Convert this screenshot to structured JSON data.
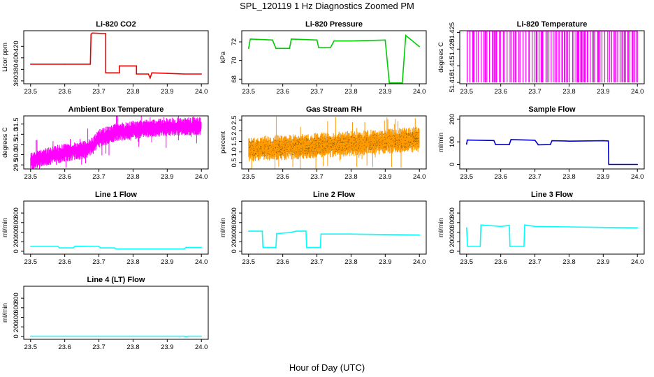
{
  "title": "SPL_120119  1 Hz Diagnostics Zoomed PM",
  "xlabel": "Hour of Day (UTC)",
  "chart_data": [
    {
      "type": "line",
      "title": "Li-820 CO2",
      "ylabel": "Licor ppm",
      "xlim": [
        23.48,
        24.02
      ],
      "ylim": [
        355,
        447
      ],
      "xticks": [
        "23.5",
        "23.6",
        "23.7",
        "23.8",
        "23.9",
        "24.0"
      ],
      "yticks": [
        {
          "v": 360,
          "t": "360"
        },
        {
          "v": 380,
          "t": "380"
        },
        {
          "v": 400,
          "t": "400"
        },
        {
          "v": 420,
          "t": "420"
        }
      ],
      "color": "#ee0000",
      "style": "line",
      "series": [
        [
          23.5,
          389
        ],
        [
          23.6,
          389
        ],
        [
          23.675,
          389
        ],
        [
          23.677,
          441
        ],
        [
          23.681,
          443
        ],
        [
          23.72,
          442
        ],
        [
          23.72,
          374
        ],
        [
          23.76,
          374
        ],
        [
          23.76,
          386
        ],
        [
          23.81,
          386
        ],
        [
          23.81,
          372
        ],
        [
          23.845,
          372
        ],
        [
          23.85,
          365
        ],
        [
          23.855,
          374
        ],
        [
          23.9,
          373
        ],
        [
          23.95,
          372
        ],
        [
          24.0,
          372
        ]
      ]
    },
    {
      "type": "line",
      "title": "Li-820 Pressure",
      "ylabel": "kPa",
      "xlim": [
        23.48,
        24.02
      ],
      "ylim": [
        67.5,
        73.2
      ],
      "xticks": [
        "23.5",
        "23.6",
        "23.7",
        "23.8",
        "23.9",
        "24.0"
      ],
      "yticks": [
        {
          "v": 68,
          "t": "68"
        },
        {
          "v": 70,
          "t": "70"
        },
        {
          "v": 72,
          "t": "72"
        }
      ],
      "color": "#00cc00",
      "style": "line",
      "series": [
        [
          23.5,
          71.3
        ],
        [
          23.505,
          72.3
        ],
        [
          23.57,
          72.2
        ],
        [
          23.58,
          71.3
        ],
        [
          23.62,
          71.3
        ],
        [
          23.625,
          72.3
        ],
        [
          23.7,
          72.2
        ],
        [
          23.705,
          71.4
        ],
        [
          23.74,
          71.4
        ],
        [
          23.75,
          72.1
        ],
        [
          23.8,
          72.1
        ],
        [
          23.9,
          72.2
        ],
        [
          23.912,
          67.6
        ],
        [
          23.95,
          67.6
        ],
        [
          23.96,
          72.7
        ],
        [
          24.0,
          71.5
        ]
      ]
    },
    {
      "type": "line",
      "title": "Li-820 Temperature",
      "ylabel": "degrees C",
      "xlim": [
        23.48,
        24.02
      ],
      "ylim": [
        51.4096,
        51.4255
      ],
      "xticks": [
        "23.5",
        "23.6",
        "23.7",
        "23.8",
        "23.9",
        "24.0"
      ],
      "yticks": [
        {
          "v": 51.41,
          "t": "51.410"
        },
        {
          "v": 51.415,
          "t": "51.415"
        },
        {
          "v": 51.42,
          "t": "51.420"
        },
        {
          "v": 51.425,
          "t": "51.425"
        }
      ],
      "color": "#ff00ff",
      "style": "spikes",
      "low": 51.41,
      "high": 51.4254
    },
    {
      "type": "line",
      "title": "Ambient Box Temperature",
      "ylabel": "degrees C",
      "xlim": [
        23.48,
        24.02
      ],
      "ylim": [
        29.3,
        31.9
      ],
      "xticks": [
        "23.5",
        "23.6",
        "23.7",
        "23.8",
        "23.9",
        "24.0"
      ],
      "yticks": [
        {
          "v": 29.5,
          "t": "29.5"
        },
        {
          "v": 30.0,
          "t": "30.0"
        },
        {
          "v": 30.5,
          "t": "30.5"
        },
        {
          "v": 31.0,
          "t": "31.0"
        },
        {
          "v": 31.5,
          "t": "31.5"
        }
      ],
      "color": "#ff00ff",
      "style": "band",
      "bandwidth": 0.45,
      "series": [
        [
          23.5,
          29.7
        ],
        [
          23.55,
          29.9
        ],
        [
          23.6,
          30.1
        ],
        [
          23.65,
          30.2
        ],
        [
          23.68,
          30.4
        ],
        [
          23.7,
          30.8
        ],
        [
          23.75,
          31.1
        ],
        [
          23.8,
          31.2
        ],
        [
          23.85,
          31.3
        ],
        [
          23.9,
          31.35
        ],
        [
          24.0,
          31.4
        ]
      ]
    },
    {
      "type": "line",
      "title": "Gas Stream RH",
      "ylabel": "percent",
      "xlim": [
        23.48,
        24.02
      ],
      "ylim": [
        0.2,
        2.7
      ],
      "xticks": [
        "23.5",
        "23.6",
        "23.7",
        "23.8",
        "23.9",
        "24.0"
      ],
      "yticks": [
        {
          "v": 0.5,
          "t": "0.5"
        },
        {
          "v": 1.0,
          "t": "1.0"
        },
        {
          "v": 1.5,
          "t": "1.5"
        },
        {
          "v": 2.0,
          "t": "2.0"
        },
        {
          "v": 2.5,
          "t": "2.5"
        }
      ],
      "color": "#ff9900",
      "dot": "#333300",
      "style": "band",
      "bandwidth": 0.6,
      "series": [
        [
          23.5,
          1.15
        ],
        [
          23.6,
          1.2
        ],
        [
          23.7,
          1.3
        ],
        [
          23.8,
          1.4
        ],
        [
          23.9,
          1.5
        ],
        [
          24.0,
          1.6
        ]
      ]
    },
    {
      "type": "line",
      "title": "Sample Flow",
      "ylabel": "ml/min",
      "xlim": [
        23.48,
        24.02
      ],
      "ylim": [
        -20,
        215
      ],
      "xticks": [
        "23.5",
        "23.6",
        "23.7",
        "23.8",
        "23.9",
        "24.0"
      ],
      "yticks": [
        {
          "v": 0,
          "t": "0"
        },
        {
          "v": 100,
          "t": "100"
        },
        {
          "v": 200,
          "t": "200"
        }
      ],
      "color": "#0000cc",
      "style": "line",
      "series": [
        [
          23.5,
          90
        ],
        [
          23.502,
          108
        ],
        [
          23.58,
          106
        ],
        [
          23.585,
          88
        ],
        [
          23.625,
          88
        ],
        [
          23.63,
          110
        ],
        [
          23.7,
          107
        ],
        [
          23.71,
          87
        ],
        [
          23.745,
          88
        ],
        [
          23.75,
          105
        ],
        [
          23.79,
          104
        ],
        [
          23.8,
          103
        ],
        [
          23.9,
          105
        ],
        [
          23.915,
          104
        ],
        [
          23.916,
          0
        ],
        [
          24.0,
          0
        ]
      ]
    },
    {
      "type": "line",
      "title": "Line 1 Flow",
      "ylabel": "ml/min",
      "xlim": [
        23.48,
        24.02
      ],
      "ylim": [
        -60,
        1050
      ],
      "xticks": [
        "23.5",
        "23.6",
        "23.7",
        "23.8",
        "23.9",
        "24.0"
      ],
      "yticks": [
        {
          "v": 0,
          "t": "0"
        },
        {
          "v": 200,
          "t": "200"
        },
        {
          "v": 400,
          "t": "400"
        },
        {
          "v": 600,
          "t": "600"
        },
        {
          "v": 800,
          "t": "800"
        }
      ],
      "color": "#00ffff",
      "style": "line",
      "series": [
        [
          23.5,
          100
        ],
        [
          23.58,
          100
        ],
        [
          23.585,
          70
        ],
        [
          23.625,
          70
        ],
        [
          23.63,
          105
        ],
        [
          23.7,
          100
        ],
        [
          23.705,
          70
        ],
        [
          23.745,
          70
        ],
        [
          23.75,
          50
        ],
        [
          23.95,
          50
        ],
        [
          23.955,
          80
        ],
        [
          24.0,
          80
        ]
      ]
    },
    {
      "type": "line",
      "title": "Line 2 Flow",
      "ylabel": "ml/min",
      "xlim": [
        23.48,
        24.02
      ],
      "ylim": [
        -60,
        1050
      ],
      "xticks": [
        "23.5",
        "23.6",
        "23.7",
        "23.8",
        "23.9",
        "24.0"
      ],
      "yticks": [
        {
          "v": 0,
          "t": "0"
        },
        {
          "v": 200,
          "t": "200"
        },
        {
          "v": 400,
          "t": "400"
        },
        {
          "v": 600,
          "t": "600"
        },
        {
          "v": 800,
          "t": "800"
        }
      ],
      "color": "#00ffff",
      "style": "line",
      "series": [
        [
          23.5,
          420
        ],
        [
          23.54,
          420
        ],
        [
          23.542,
          80
        ],
        [
          23.58,
          80
        ],
        [
          23.582,
          370
        ],
        [
          23.62,
          390
        ],
        [
          23.64,
          420
        ],
        [
          23.668,
          420
        ],
        [
          23.67,
          80
        ],
        [
          23.71,
          80
        ],
        [
          23.712,
          360
        ],
        [
          23.8,
          360
        ],
        [
          23.9,
          350
        ],
        [
          24.0,
          340
        ]
      ]
    },
    {
      "type": "line",
      "title": "Line 3 Flow",
      "ylabel": "ml/min",
      "xlim": [
        23.48,
        24.02
      ],
      "ylim": [
        -60,
        1050
      ],
      "xticks": [
        "23.5",
        "23.6",
        "23.7",
        "23.8",
        "23.9",
        "24.0"
      ],
      "yticks": [
        {
          "v": 0,
          "t": "0"
        },
        {
          "v": 200,
          "t": "200"
        },
        {
          "v": 400,
          "t": "400"
        },
        {
          "v": 600,
          "t": "600"
        },
        {
          "v": 800,
          "t": "800"
        }
      ],
      "color": "#00ffff",
      "style": "line",
      "series": [
        [
          23.5,
          490
        ],
        [
          23.503,
          100
        ],
        [
          23.54,
          100
        ],
        [
          23.542,
          550
        ],
        [
          23.6,
          520
        ],
        [
          23.625,
          540
        ],
        [
          23.627,
          100
        ],
        [
          23.668,
          100
        ],
        [
          23.67,
          550
        ],
        [
          23.7,
          520
        ],
        [
          23.8,
          510
        ],
        [
          23.9,
          500
        ],
        [
          24.0,
          490
        ]
      ]
    },
    {
      "type": "line",
      "title": "Line 4 (LT) Flow",
      "ylabel": "ml/min",
      "xlim": [
        23.48,
        24.02
      ],
      "ylim": [
        -60,
        1050
      ],
      "xticks": [
        "23.5",
        "23.6",
        "23.7",
        "23.8",
        "23.9",
        "24.0"
      ],
      "yticks": [
        {
          "v": 0,
          "t": "0"
        },
        {
          "v": 200,
          "t": "200"
        },
        {
          "v": 400,
          "t": "400"
        },
        {
          "v": 600,
          "t": "600"
        },
        {
          "v": 800,
          "t": "800"
        }
      ],
      "color": "#00ffff",
      "style": "line",
      "series": [
        [
          23.5,
          5
        ],
        [
          23.95,
          5
        ],
        [
          23.955,
          -5
        ],
        [
          23.96,
          5
        ],
        [
          24.0,
          5
        ]
      ]
    }
  ]
}
